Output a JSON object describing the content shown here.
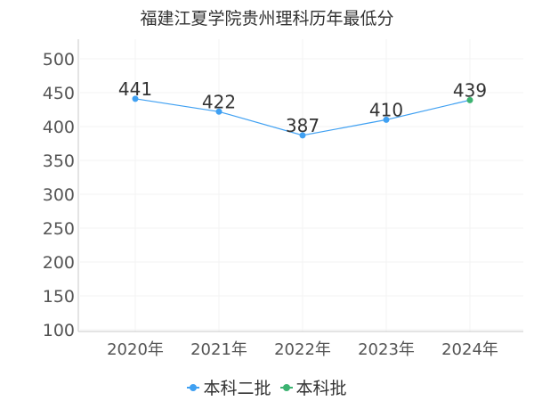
{
  "chart_data": {
    "type": "line",
    "title": "福建江夏学院贵州理科历年最低分",
    "categories": [
      "2020年",
      "2021年",
      "2022年",
      "2023年",
      "2024年"
    ],
    "values": [
      441,
      422,
      387,
      410,
      439
    ],
    "point_series": [
      0,
      0,
      0,
      0,
      1
    ],
    "series": [
      {
        "name": "本科二批",
        "color": "#3fa0f2"
      },
      {
        "name": "本科批",
        "color": "#3cb371"
      }
    ],
    "line_color": "#3fa0f2",
    "ylim": [
      100,
      500
    ],
    "yticks": [
      100,
      150,
      200,
      250,
      300,
      350,
      400,
      450,
      500
    ],
    "xlabel": "",
    "ylabel": "",
    "grid": true,
    "legend_position": "bottom"
  }
}
